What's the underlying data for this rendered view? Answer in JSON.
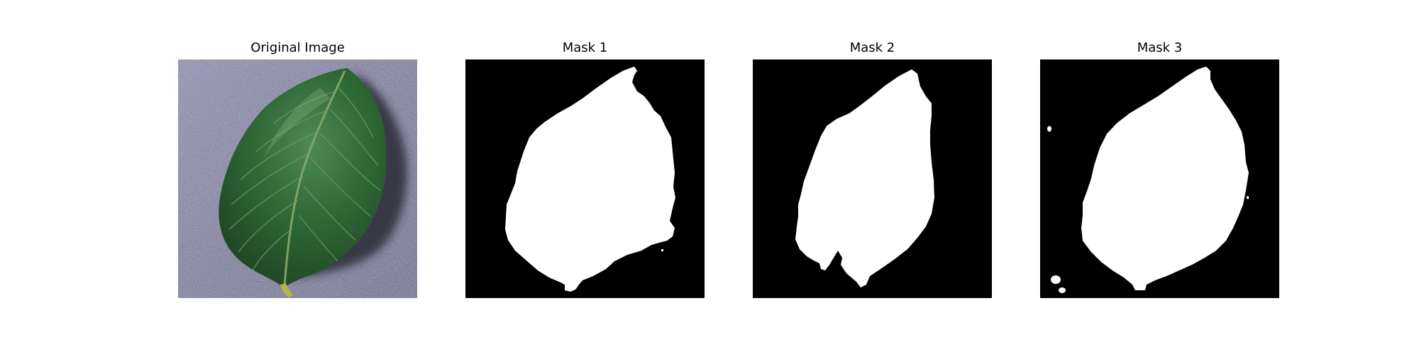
{
  "figure": {
    "panels": [
      {
        "title": "Original Image",
        "kind": "photo"
      },
      {
        "title": "Mask 1",
        "kind": "mask"
      },
      {
        "title": "Mask 2",
        "kind": "mask"
      },
      {
        "title": "Mask 3",
        "kind": "mask"
      }
    ]
  },
  "colors": {
    "mask_background": "#000000",
    "mask_foreground": "#ffffff",
    "photo_background": "#7e7e9c",
    "leaf_dark": "#1d3f22",
    "leaf_mid": "#2f6a36",
    "leaf_light": "#4f8a55",
    "leaf_midrib": "#8aa86a",
    "shadow": "#2d2e3c"
  }
}
